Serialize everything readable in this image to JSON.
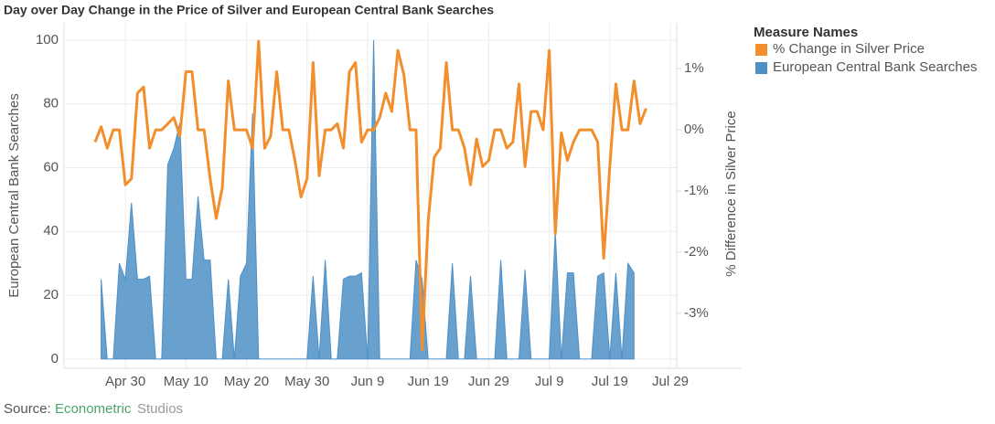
{
  "chart_data": {
    "type": "area-line",
    "title": "Day over Day Change in the Price of Silver and European Central Bank Searches",
    "ylabel": "European Central Bank Searches",
    "y2label": "% Difference in Silver Price",
    "legend_title": "Measure Names",
    "legend": "right",
    "grid": true,
    "source": {
      "label": "Source:",
      "brand1": "Econometric",
      "brand2": "Studios"
    },
    "categories": [
      "Apr 25",
      "Apr 26",
      "Apr 27",
      "Apr 28",
      "Apr 29",
      "Apr 30",
      "May 1",
      "May 2",
      "May 3",
      "May 4",
      "May 5",
      "May 6",
      "May 7",
      "May 8",
      "May 9",
      "May 10",
      "May 11",
      "May 12",
      "May 13",
      "May 14",
      "May 15",
      "May 16",
      "May 17",
      "May 18",
      "May 19",
      "May 20",
      "May 21",
      "May 22",
      "May 23",
      "May 24",
      "May 25",
      "May 26",
      "May 27",
      "May 28",
      "May 29",
      "May 30",
      "May 31",
      "Jun 1",
      "Jun 2",
      "Jun 3",
      "Jun 4",
      "Jun 5",
      "Jun 6",
      "Jun 7",
      "Jun 8",
      "Jun 9",
      "Jun 10",
      "Jun 11",
      "Jun 12",
      "Jun 13",
      "Jun 14",
      "Jun 15",
      "Jun 16",
      "Jun 17",
      "Jun 18",
      "Jun 19",
      "Jun 20",
      "Jun 21",
      "Jun 22",
      "Jun 23",
      "Jun 24",
      "Jun 25",
      "Jun 26",
      "Jun 27",
      "Jun 28",
      "Jun 29",
      "Jun 30",
      "Jul 1",
      "Jul 2",
      "Jul 3",
      "Jul 4",
      "Jul 5",
      "Jul 6",
      "Jul 7",
      "Jul 8",
      "Jul 9",
      "Jul 10",
      "Jul 11",
      "Jul 12",
      "Jul 13",
      "Jul 14",
      "Jul 15",
      "Jul 16",
      "Jul 17",
      "Jul 18",
      "Jul 19",
      "Jul 20",
      "Jul 21",
      "Jul 22",
      "Jul 23",
      "Jul 24",
      "Jul 25",
      "Jul 26",
      "Jul 27",
      "Jul 28",
      "Jul 29"
    ],
    "xticks": [
      "Apr 30",
      "May 10",
      "May 20",
      "May 30",
      "Jun 9",
      "Jun 19",
      "Jun 29",
      "Jul 9",
      "Jul 19",
      "Jul 29"
    ],
    "series": [
      {
        "name": "% Change in Silver Price",
        "kind": "line",
        "axis": "y2",
        "color": "#f28e2b",
        "values": [
          -0.2,
          0.05,
          -0.3,
          0,
          0,
          -0.9,
          -0.8,
          0.6,
          0.7,
          -0.3,
          0,
          0,
          0.1,
          0.2,
          -0.1,
          0.95,
          0.95,
          0,
          0,
          -0.8,
          -1.45,
          -0.95,
          0.8,
          0,
          0,
          0,
          -0.3,
          1.45,
          -0.3,
          -0.1,
          0.95,
          0,
          0,
          -0.5,
          -1.1,
          -0.8,
          1.1,
          -0.75,
          0,
          0,
          0.1,
          -0.3,
          0.95,
          1.1,
          -0.2,
          0,
          0,
          0.2,
          0.6,
          0.3,
          1.3,
          0.9,
          0,
          0,
          -3.6,
          -1.5,
          -0.45,
          -0.3,
          1.1,
          0,
          0,
          -0.3,
          -0.9,
          -0.15,
          -0.6,
          -0.5,
          0,
          0,
          -0.3,
          -0.2,
          0.75,
          -0.6,
          0.3,
          0.3,
          0,
          1.3,
          -1.7,
          -0.05,
          -0.5,
          -0.2,
          0,
          0,
          0,
          -0.2,
          -2.1,
          -0.6,
          0.75,
          0,
          0,
          0.8,
          0.1,
          0.35,
          null,
          null,
          null,
          null
        ]
      },
      {
        "name": "European Central Bank Searches",
        "kind": "area",
        "axis": "y",
        "color": "#4e8fc6",
        "values": [
          null,
          25,
          0,
          0,
          30,
          25,
          49,
          25,
          25,
          26,
          0,
          0,
          61,
          66,
          74,
          25,
          25,
          51,
          31,
          31,
          0,
          0,
          25,
          0,
          26,
          30,
          77,
          0,
          0,
          0,
          0,
          0,
          0,
          0,
          0,
          0,
          26,
          0,
          31,
          0,
          0,
          25,
          26,
          26,
          27,
          0,
          100,
          0,
          0,
          0,
          0,
          0,
          0,
          31,
          25,
          0,
          0,
          0,
          0,
          30,
          0,
          0,
          26,
          0,
          0,
          0,
          0,
          31,
          0,
          0,
          0,
          28,
          0,
          0,
          0,
          0,
          40,
          0,
          27,
          27,
          0,
          0,
          0,
          26,
          27,
          0,
          27,
          0,
          30,
          27,
          null,
          null,
          null,
          null,
          null,
          null
        ]
      }
    ],
    "ylim": [
      -2.9,
      105.4
    ],
    "yticks": [
      0,
      20,
      40,
      60,
      80,
      100
    ],
    "y2lim": [
      -3.9,
      1.75
    ],
    "y2ticks": [
      {
        "value": 1,
        "label": "1%"
      },
      {
        "value": 0,
        "label": "0%"
      },
      {
        "value": -1,
        "label": "-1%"
      },
      {
        "value": -2,
        "label": "-2%"
      },
      {
        "value": -3,
        "label": "-3%"
      }
    ]
  }
}
